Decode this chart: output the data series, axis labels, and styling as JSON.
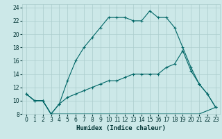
{
  "xlabel": "Humidex (Indice chaleur)",
  "bg_color": "#cce8e8",
  "line_color": "#006666",
  "grid_color": "#aacccc",
  "series1_x": [
    0,
    1,
    2,
    3,
    4,
    5,
    6,
    7,
    8,
    9,
    10,
    11,
    12,
    13,
    14,
    15,
    16,
    17,
    18,
    19,
    20,
    21,
    22,
    23
  ],
  "series1_y": [
    11,
    10,
    10,
    8,
    9.5,
    13,
    16,
    18,
    19.5,
    21,
    22.5,
    22.5,
    22.5,
    22,
    22,
    23.5,
    22.5,
    22.5,
    21,
    18,
    15,
    12.5,
    11,
    9
  ],
  "series2_x": [
    0,
    1,
    2,
    3,
    4,
    5,
    6,
    7,
    8,
    9,
    10,
    11,
    12,
    13,
    14,
    15,
    16,
    17,
    18,
    19,
    20,
    21,
    22,
    23
  ],
  "series2_y": [
    11,
    10,
    10,
    8,
    8,
    8,
    8,
    8,
    8,
    8,
    8,
    8,
    8,
    8,
    8,
    8,
    8,
    8,
    8,
    8,
    8,
    8,
    8.5,
    9
  ],
  "series3_x": [
    0,
    1,
    2,
    3,
    4,
    5,
    6,
    7,
    8,
    9,
    10,
    11,
    12,
    13,
    14,
    15,
    16,
    17,
    18,
    19,
    20,
    21,
    22,
    23
  ],
  "series3_y": [
    11,
    10,
    10,
    8,
    9.5,
    10.5,
    11,
    11.5,
    12,
    12.5,
    13,
    13,
    13.5,
    14,
    14,
    14,
    14,
    15,
    15.5,
    17.5,
    14.5,
    12.5,
    11,
    9
  ],
  "xlim": [
    -0.5,
    23.5
  ],
  "ylim": [
    8,
    24.5
  ],
  "yticks": [
    8,
    10,
    12,
    14,
    16,
    18,
    20,
    22,
    24
  ],
  "xticks": [
    0,
    1,
    2,
    3,
    4,
    5,
    6,
    7,
    8,
    9,
    10,
    11,
    12,
    13,
    14,
    15,
    16,
    17,
    18,
    19,
    20,
    21,
    22,
    23
  ],
  "marker": "+"
}
